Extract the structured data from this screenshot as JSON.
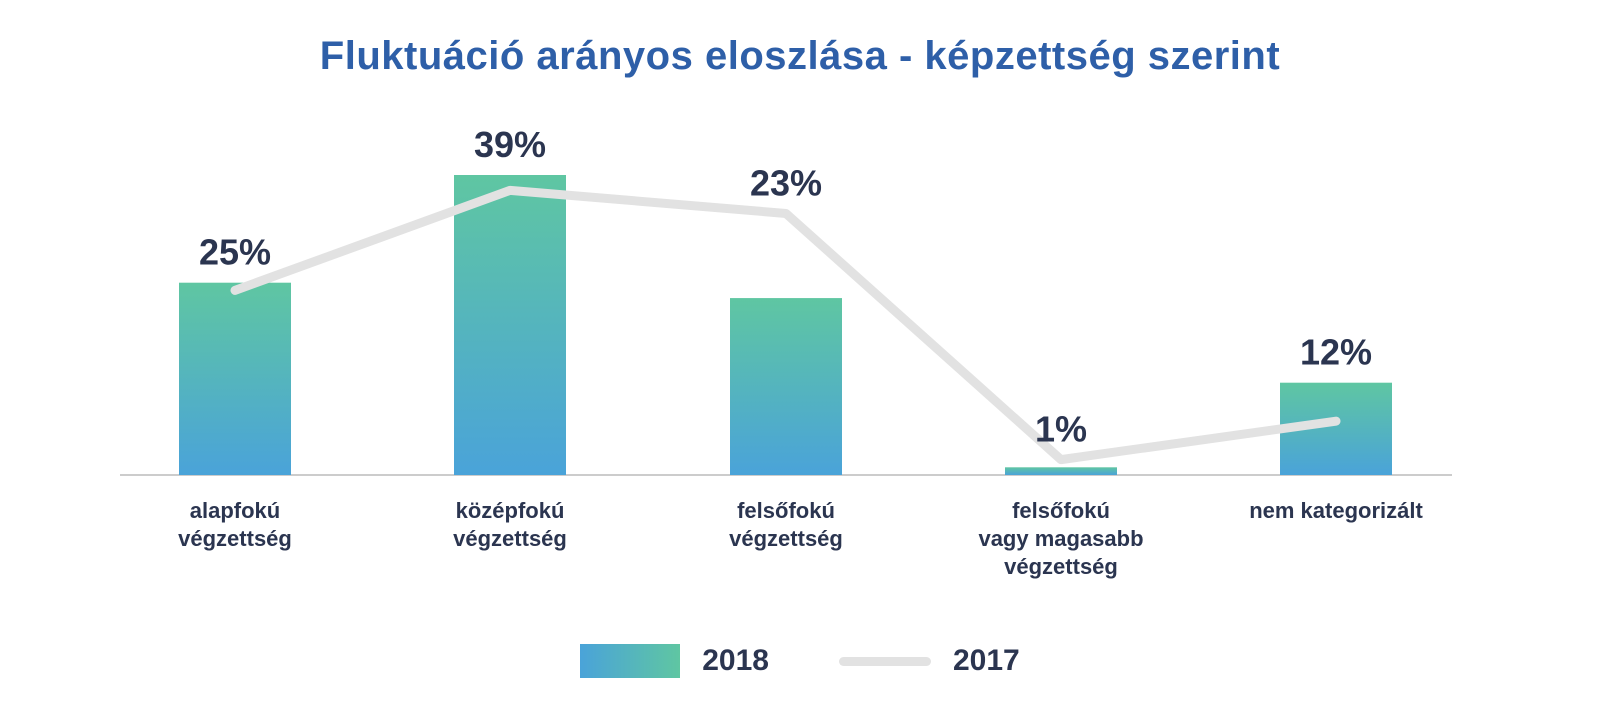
{
  "chart_data": {
    "type": "bar",
    "title": "Fluktuáció arányos eloszlása - képzettség szerint",
    "categories": [
      [
        "alapfokú",
        "végzettség"
      ],
      [
        "középfokú",
        "végzettség"
      ],
      [
        "felsőfokú",
        "végzettség"
      ],
      [
        "felsőfokú",
        "vagy magasabb",
        "végzettség"
      ],
      [
        "nem kategorizált"
      ]
    ],
    "series": [
      {
        "name": "2018",
        "type": "bar",
        "values": [
          25,
          39,
          23,
          1,
          12
        ],
        "labels": [
          "25%",
          "39%",
          "23%",
          "1%",
          "12%"
        ]
      },
      {
        "name": "2017",
        "type": "line",
        "values": [
          24,
          37,
          34,
          2,
          7
        ]
      }
    ],
    "ylim": [
      0,
      42
    ],
    "grid": false,
    "legend_position": "bottom-center",
    "colors": {
      "bar_gradient_top": "#5fc6a2",
      "bar_gradient_bottom": "#4aa3d9",
      "line_2017": "#e2e2e2",
      "title": "#2e5fa8",
      "label": "#2b3550",
      "axis": "#cccccc"
    }
  },
  "legend": {
    "items": [
      {
        "label": "2018",
        "swatch": "gradient-bar"
      },
      {
        "label": "2017",
        "swatch": "gray-line"
      }
    ]
  }
}
